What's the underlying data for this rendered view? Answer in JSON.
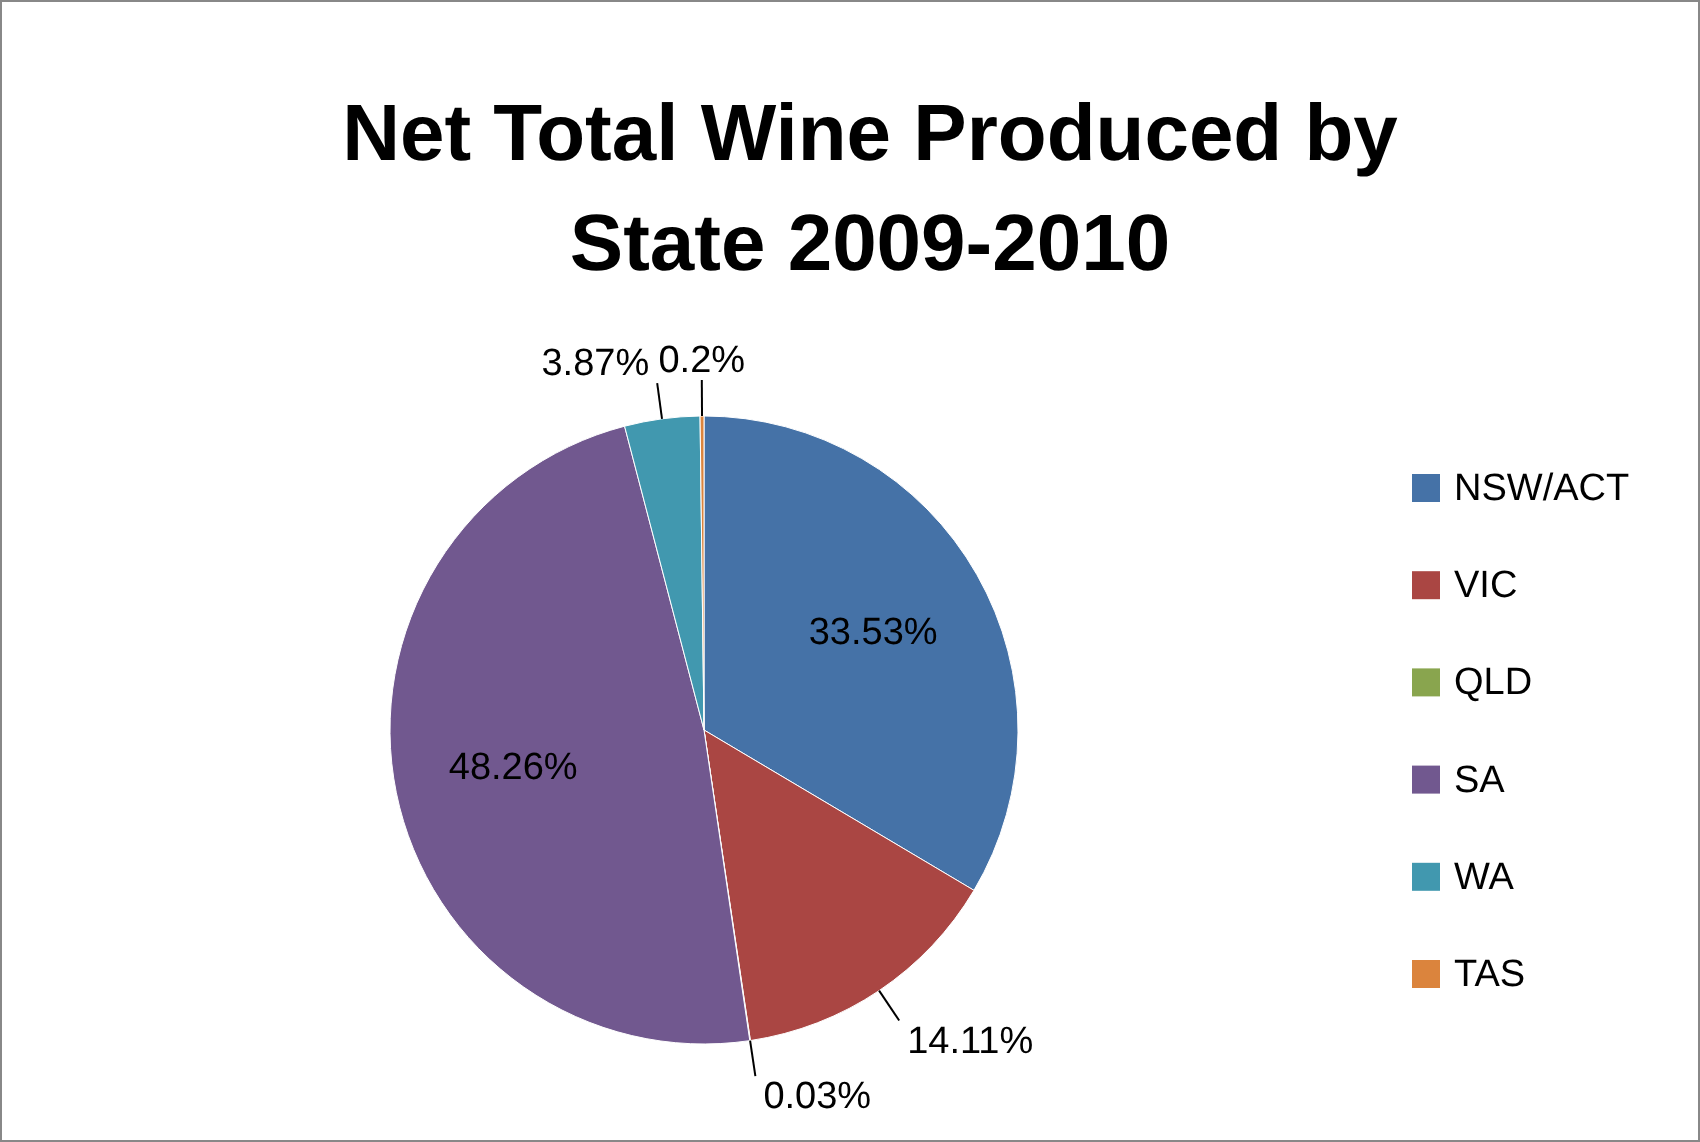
{
  "chart_data": {
    "type": "pie",
    "title": "Net Total Wine Produced by State 2009-2010",
    "categories": [
      "NSW/ACT",
      "VIC",
      "QLD",
      "SA",
      "WA",
      "TAS"
    ],
    "values": [
      33.53,
      14.11,
      0.03,
      48.26,
      3.87,
      0.2
    ],
    "colors": [
      "#4572a7",
      "#aa4643",
      "#89a54e",
      "#71588f",
      "#4198af",
      "#db843d"
    ],
    "value_labels": [
      "33.53%",
      "14.11%",
      "0.03%",
      "48.26%",
      "3.87%",
      "0.2%"
    ],
    "legend": "right"
  }
}
